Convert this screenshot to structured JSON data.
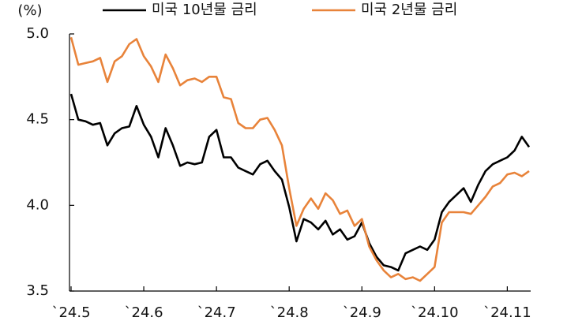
{
  "chart_data": {
    "type": "line",
    "y_label": "(%)",
    "categories": [
      "`24.5",
      null,
      null,
      null,
      null,
      null,
      null,
      null,
      null,
      null,
      "`24.6",
      null,
      null,
      null,
      null,
      null,
      null,
      null,
      null,
      null,
      "`24.7",
      null,
      null,
      null,
      null,
      null,
      null,
      null,
      null,
      null,
      "`24.8",
      null,
      null,
      null,
      null,
      null,
      null,
      null,
      null,
      null,
      "`24.9",
      null,
      null,
      null,
      null,
      null,
      null,
      null,
      null,
      null,
      "`24.10",
      null,
      null,
      null,
      null,
      null,
      null,
      null,
      null,
      null,
      "`24.11",
      null,
      null,
      null
    ],
    "series": [
      {
        "name": "미국 10년물 금리",
        "color": "#000000",
        "values": [
          4.65,
          4.5,
          4.49,
          4.47,
          4.48,
          4.35,
          4.42,
          4.45,
          4.46,
          4.58,
          4.47,
          4.4,
          4.28,
          4.45,
          4.35,
          4.23,
          4.25,
          4.24,
          4.25,
          4.4,
          4.44,
          4.28,
          4.28,
          4.22,
          4.2,
          4.18,
          4.24,
          4.26,
          4.2,
          4.15,
          3.99,
          3.79,
          3.92,
          3.9,
          3.86,
          3.91,
          3.83,
          3.86,
          3.8,
          3.82,
          3.9,
          3.78,
          3.7,
          3.65,
          3.64,
          3.62,
          3.72,
          3.74,
          3.76,
          3.74,
          3.8,
          3.96,
          4.02,
          4.06,
          4.1,
          4.02,
          4.12,
          4.2,
          4.24,
          4.26,
          4.28,
          4.32,
          4.4,
          4.34
        ]
      },
      {
        "name": "미국 2년물 금리",
        "color": "#e8833a",
        "values": [
          4.98,
          4.82,
          4.83,
          4.84,
          4.86,
          4.72,
          4.84,
          4.87,
          4.94,
          4.97,
          4.87,
          4.81,
          4.72,
          4.88,
          4.8,
          4.7,
          4.73,
          4.74,
          4.72,
          4.75,
          4.75,
          4.63,
          4.62,
          4.48,
          4.45,
          4.45,
          4.5,
          4.51,
          4.44,
          4.35,
          4.1,
          3.88,
          3.98,
          4.04,
          3.98,
          4.07,
          4.03,
          3.95,
          3.97,
          3.88,
          3.92,
          3.76,
          3.68,
          3.62,
          3.58,
          3.6,
          3.57,
          3.58,
          3.56,
          3.6,
          3.64,
          3.9,
          3.96,
          3.96,
          3.96,
          3.95,
          4.0,
          4.05,
          4.11,
          4.13,
          4.18,
          4.19,
          4.17,
          4.2
        ]
      }
    ],
    "ylim": [
      3.5,
      5.0
    ],
    "yticks": [
      {
        "value": 3.5,
        "label": "3.5"
      },
      {
        "value": 4.0,
        "label": "4.0"
      },
      {
        "value": 4.5,
        "label": "4.5"
      },
      {
        "value": 5.0,
        "label": "5.0"
      }
    ],
    "grid": false,
    "legend": "top"
  }
}
